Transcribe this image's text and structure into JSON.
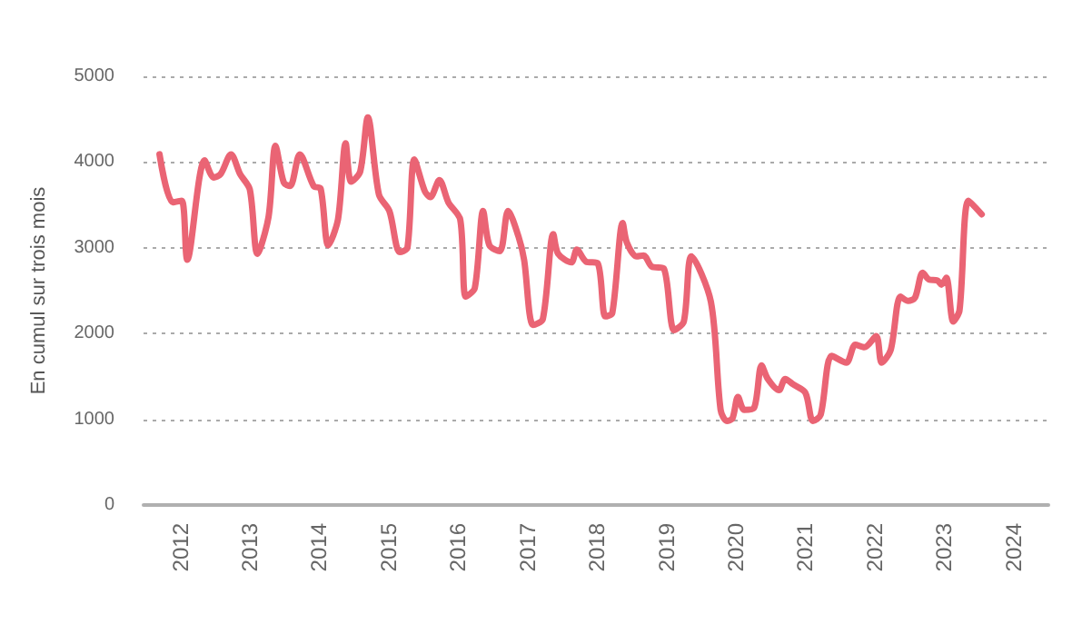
{
  "chart_data": {
    "type": "line",
    "ylabel": "En cumul sur trois mois",
    "xlim": [
      2011.47,
      2024.5
    ],
    "xticks": [
      2012,
      2013,
      2014,
      2015,
      2016,
      2017,
      2018,
      2019,
      2020,
      2021,
      2022,
      2023,
      2024
    ],
    "ylim": [
      0,
      5000
    ],
    "yticks": [
      0,
      1000,
      2000,
      3000,
      4000,
      5000
    ],
    "grid": "y",
    "marker": "none",
    "series": [
      {
        "color": "#ea6474",
        "x": [
          2011.7,
          2011.89,
          2012.02,
          2012.1,
          2012.35,
          2012.48,
          2012.58,
          2012.73,
          2012.86,
          2013.0,
          2013.11,
          2013.27,
          2013.37,
          2013.49,
          2013.58,
          2013.72,
          2013.92,
          2014.02,
          2014.13,
          2014.27,
          2014.38,
          2014.46,
          2014.59,
          2014.7,
          2014.86,
          2015.01,
          2015.16,
          2015.27,
          2015.37,
          2015.52,
          2015.6,
          2015.73,
          2015.86,
          2016.03,
          2016.11,
          2016.24,
          2016.36,
          2016.45,
          2016.6,
          2016.72,
          2016.87,
          2016.95,
          2017.08,
          2017.22,
          2017.37,
          2017.44,
          2017.63,
          2017.71,
          2017.84,
          2018.01,
          2018.12,
          2018.22,
          2018.37,
          2018.43,
          2018.57,
          2018.67,
          2018.79,
          2018.96,
          2019.11,
          2019.25,
          2019.36,
          2019.64,
          2019.78,
          2019.87,
          2019.95,
          2020.03,
          2020.12,
          2020.26,
          2020.37,
          2020.46,
          2020.62,
          2020.71,
          2020.82,
          2021.0,
          2021.11,
          2021.22,
          2021.38,
          2021.59,
          2021.72,
          2021.85,
          2022.02,
          2022.1,
          2022.23,
          2022.37,
          2022.48,
          2022.58,
          2022.69,
          2022.78,
          2022.9,
          2022.96,
          2023.03,
          2023.13,
          2023.22,
          2023.35,
          2023.54
        ],
        "values": [
          4090,
          3530,
          3550,
          2860,
          4020,
          3820,
          3860,
          4090,
          3860,
          3680,
          2930,
          3360,
          4190,
          3760,
          3720,
          4090,
          3720,
          3690,
          3030,
          3330,
          4220,
          3770,
          3890,
          4520,
          3620,
          3430,
          2950,
          3000,
          4030,
          3660,
          3590,
          3790,
          3530,
          3330,
          2430,
          2530,
          3430,
          3030,
          2960,
          3430,
          3130,
          2860,
          2100,
          2170,
          3160,
          2930,
          2830,
          2980,
          2840,
          2820,
          2200,
          2240,
          3290,
          3060,
          2900,
          2910,
          2780,
          2760,
          2040,
          2140,
          2900,
          2370,
          1110,
          980,
          1010,
          1260,
          1110,
          1130,
          1630,
          1470,
          1340,
          1470,
          1410,
          1310,
          980,
          1050,
          1740,
          1660,
          1870,
          1840,
          1970,
          1660,
          1810,
          2430,
          2380,
          2420,
          2710,
          2630,
          2620,
          2570,
          2650,
          2140,
          2270,
          3550,
          3390
        ]
      }
    ]
  }
}
